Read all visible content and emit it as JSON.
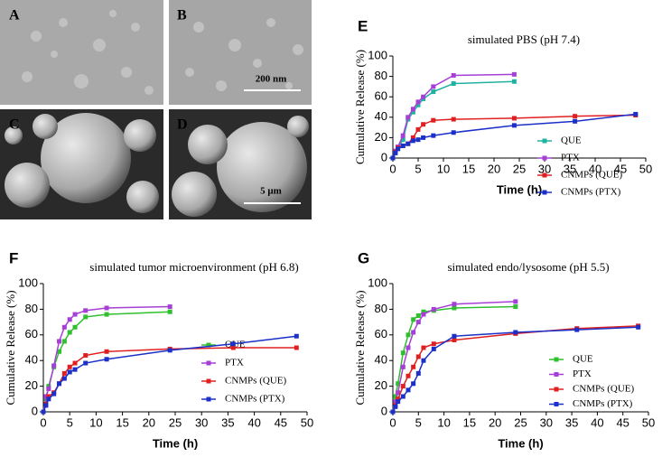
{
  "panels": [
    {
      "label": "A"
    },
    {
      "label": "B",
      "scale": "200 nm"
    },
    {
      "label": "C"
    },
    {
      "label": "D",
      "scale": "5 μm"
    }
  ],
  "chart_data": [
    {
      "type": "line",
      "label": "E",
      "title": "simulated PBS (pH 7.4)",
      "x_label": "Time (h)",
      "y_label": "Cumulative Release (%)",
      "xlim": [
        0,
        50
      ],
      "xticks": [
        0,
        5,
        10,
        15,
        20,
        25,
        30,
        35,
        40,
        45,
        50
      ],
      "ylim": [
        0,
        100
      ],
      "yticks": [
        0,
        20,
        40,
        60,
        80,
        100
      ],
      "series": [
        {
          "name": "QUE",
          "color": "#20b2a0",
          "x": [
            0,
            0.5,
            1,
            2,
            3,
            4,
            5,
            6,
            8,
            12,
            24
          ],
          "values": [
            0,
            5,
            10,
            18,
            38,
            45,
            52,
            58,
            65,
            73,
            75
          ]
        },
        {
          "name": "PTX",
          "color": "#a63fd6",
          "x": [
            0,
            0.5,
            1,
            2,
            3,
            4,
            5,
            6,
            8,
            12,
            24
          ],
          "values": [
            0,
            7,
            11,
            22,
            40,
            48,
            55,
            60,
            70,
            81,
            82
          ]
        },
        {
          "name": "CNMPs (QUE)",
          "color": "#e02020",
          "x": [
            0,
            0.5,
            1,
            2,
            3,
            4,
            5,
            6,
            8,
            12,
            24,
            36,
            48
          ],
          "values": [
            0,
            6,
            10,
            12,
            14,
            20,
            28,
            33,
            37,
            38,
            39,
            41,
            42
          ]
        },
        {
          "name": "CNMPs (PTX)",
          "color": "#1a30c8",
          "x": [
            0,
            0.5,
            1,
            2,
            3,
            4,
            5,
            6,
            8,
            12,
            24,
            36,
            48
          ],
          "values": [
            0,
            5,
            9,
            12,
            14,
            17,
            18,
            20,
            22,
            25,
            32,
            36,
            43
          ]
        }
      ]
    },
    {
      "type": "line",
      "label": "F",
      "title": "simulated tumor microenvironment (pH 6.8)",
      "x_label": "Time (h)",
      "y_label": "Cumulative Release (%)",
      "xlim": [
        0,
        50
      ],
      "xticks": [
        0,
        5,
        10,
        15,
        20,
        25,
        30,
        35,
        40,
        45,
        50
      ],
      "ylim": [
        0,
        100
      ],
      "yticks": [
        0,
        20,
        40,
        60,
        80,
        100
      ],
      "series": [
        {
          "name": "QUE",
          "color": "#2fbf2f",
          "x": [
            0,
            0.5,
            1,
            2,
            3,
            4,
            5,
            6,
            8,
            12,
            24
          ],
          "values": [
            0,
            10,
            20,
            35,
            47,
            55,
            62,
            66,
            74,
            76,
            78
          ]
        },
        {
          "name": "PTX",
          "color": "#a63fd6",
          "x": [
            0,
            0.5,
            1,
            2,
            3,
            4,
            5,
            6,
            8,
            12,
            24
          ],
          "values": [
            0,
            12,
            18,
            36,
            55,
            66,
            72,
            76,
            79,
            81,
            82
          ]
        },
        {
          "name": "CNMPs (QUE)",
          "color": "#e02020",
          "x": [
            0,
            0.5,
            1,
            2,
            3,
            4,
            5,
            6,
            8,
            12,
            24,
            36,
            48
          ],
          "values": [
            0,
            6,
            12,
            15,
            22,
            30,
            35,
            38,
            44,
            47,
            49,
            50,
            50
          ]
        },
        {
          "name": "CNMPs (PTX)",
          "color": "#1a30c8",
          "x": [
            0,
            0.5,
            1,
            2,
            3,
            4,
            5,
            6,
            8,
            12,
            24,
            36,
            48
          ],
          "values": [
            0,
            5,
            10,
            14,
            22,
            26,
            31,
            33,
            38,
            41,
            48,
            53,
            59
          ]
        }
      ]
    },
    {
      "type": "line",
      "label": "G",
      "title": "simulated endo/lysosome (pH 5.5)",
      "x_label": "Time (h)",
      "y_label": "Cumulative Release (%)",
      "xlim": [
        0,
        50
      ],
      "xticks": [
        0,
        5,
        10,
        15,
        20,
        25,
        30,
        35,
        40,
        45,
        50
      ],
      "ylim": [
        0,
        100
      ],
      "yticks": [
        0,
        20,
        40,
        60,
        80,
        100
      ],
      "series": [
        {
          "name": "QUE",
          "color": "#2fbf2f",
          "x": [
            0,
            0.5,
            1,
            2,
            3,
            4,
            5,
            6,
            8,
            12,
            24
          ],
          "values": [
            0,
            12,
            22,
            46,
            60,
            72,
            75,
            78,
            79,
            81,
            82
          ]
        },
        {
          "name": "PTX",
          "color": "#a63fd6",
          "x": [
            0,
            0.5,
            1,
            2,
            3,
            4,
            5,
            6,
            8,
            12,
            24
          ],
          "values": [
            0,
            8,
            15,
            35,
            50,
            62,
            70,
            76,
            80,
            84,
            86
          ]
        },
        {
          "name": "CNMPs (QUE)",
          "color": "#e02020",
          "x": [
            0,
            0.5,
            1,
            2,
            3,
            4,
            5,
            6,
            8,
            12,
            24,
            36,
            48
          ],
          "values": [
            0,
            5,
            10,
            20,
            28,
            35,
            43,
            50,
            53,
            56,
            61,
            65,
            67
          ]
        },
        {
          "name": "CNMPs (PTX)",
          "color": "#1a30c8",
          "x": [
            0,
            0.5,
            1,
            2,
            3,
            4,
            5,
            6,
            8,
            12,
            24,
            36,
            48
          ],
          "values": [
            0,
            4,
            8,
            12,
            17,
            22,
            30,
            40,
            49,
            59,
            62,
            64,
            66
          ]
        }
      ]
    }
  ]
}
